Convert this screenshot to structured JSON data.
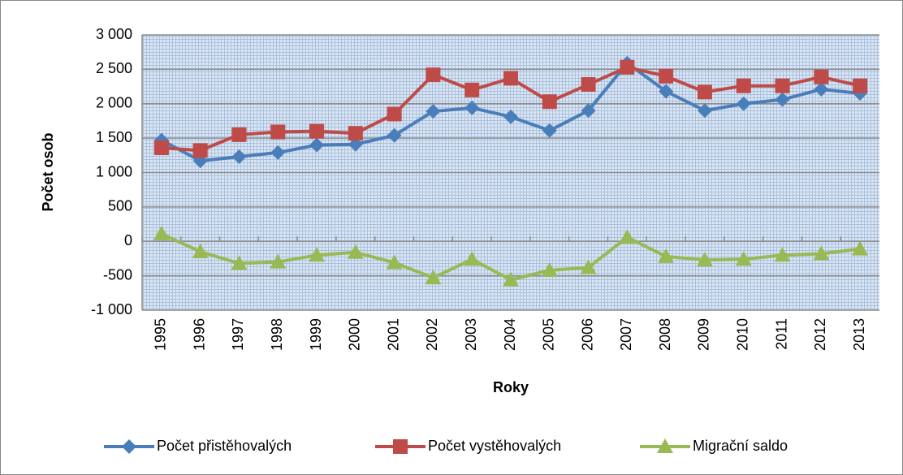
{
  "chart_data": {
    "type": "line",
    "xlabel": "Roky",
    "ylabel": "Počet osob",
    "categories": [
      "1995",
      "1996",
      "1997",
      "1998",
      "1999",
      "2000",
      "2001",
      "2002",
      "2003",
      "2004",
      "2005",
      "2006",
      "2007",
      "2008",
      "2009",
      "2010",
      "2011",
      "2012",
      "2013"
    ],
    "series": [
      {
        "name": "Počet přistěhovalých",
        "color": "#4a7ebb",
        "marker": "diamond",
        "values": [
          1470,
          1170,
          1230,
          1290,
          1400,
          1410,
          1540,
          1890,
          1940,
          1810,
          1610,
          1900,
          2590,
          2180,
          1900,
          2000,
          2060,
          2210,
          2150
        ]
      },
      {
        "name": "Počet vystěhovalých",
        "color": "#be4b48",
        "marker": "square",
        "values": [
          1360,
          1320,
          1550,
          1590,
          1600,
          1570,
          1850,
          2420,
          2200,
          2370,
          2030,
          2280,
          2530,
          2400,
          2170,
          2260,
          2260,
          2390,
          2260
        ]
      },
      {
        "name": "Migrační saldo",
        "color": "#98b954",
        "marker": "triangle",
        "values": [
          110,
          -150,
          -320,
          -300,
          -200,
          -160,
          -310,
          -530,
          -260,
          -560,
          -420,
          -380,
          60,
          -220,
          -270,
          -260,
          -200,
          -180,
          -110
        ]
      }
    ],
    "ylim": [
      -1000,
      3000
    ],
    "yticks": [
      {
        "value": -1000,
        "label": "-1 000"
      },
      -500,
      0,
      500,
      {
        "value": 1000,
        "label": "1 000"
      },
      {
        "value": 1500,
        "label": "1 500"
      },
      {
        "value": 2000,
        "label": "2 000"
      },
      {
        "value": 2500,
        "label": "2 500"
      },
      {
        "value": 3000,
        "label": "3 000"
      }
    ],
    "grid": true,
    "legend": "bottom"
  }
}
